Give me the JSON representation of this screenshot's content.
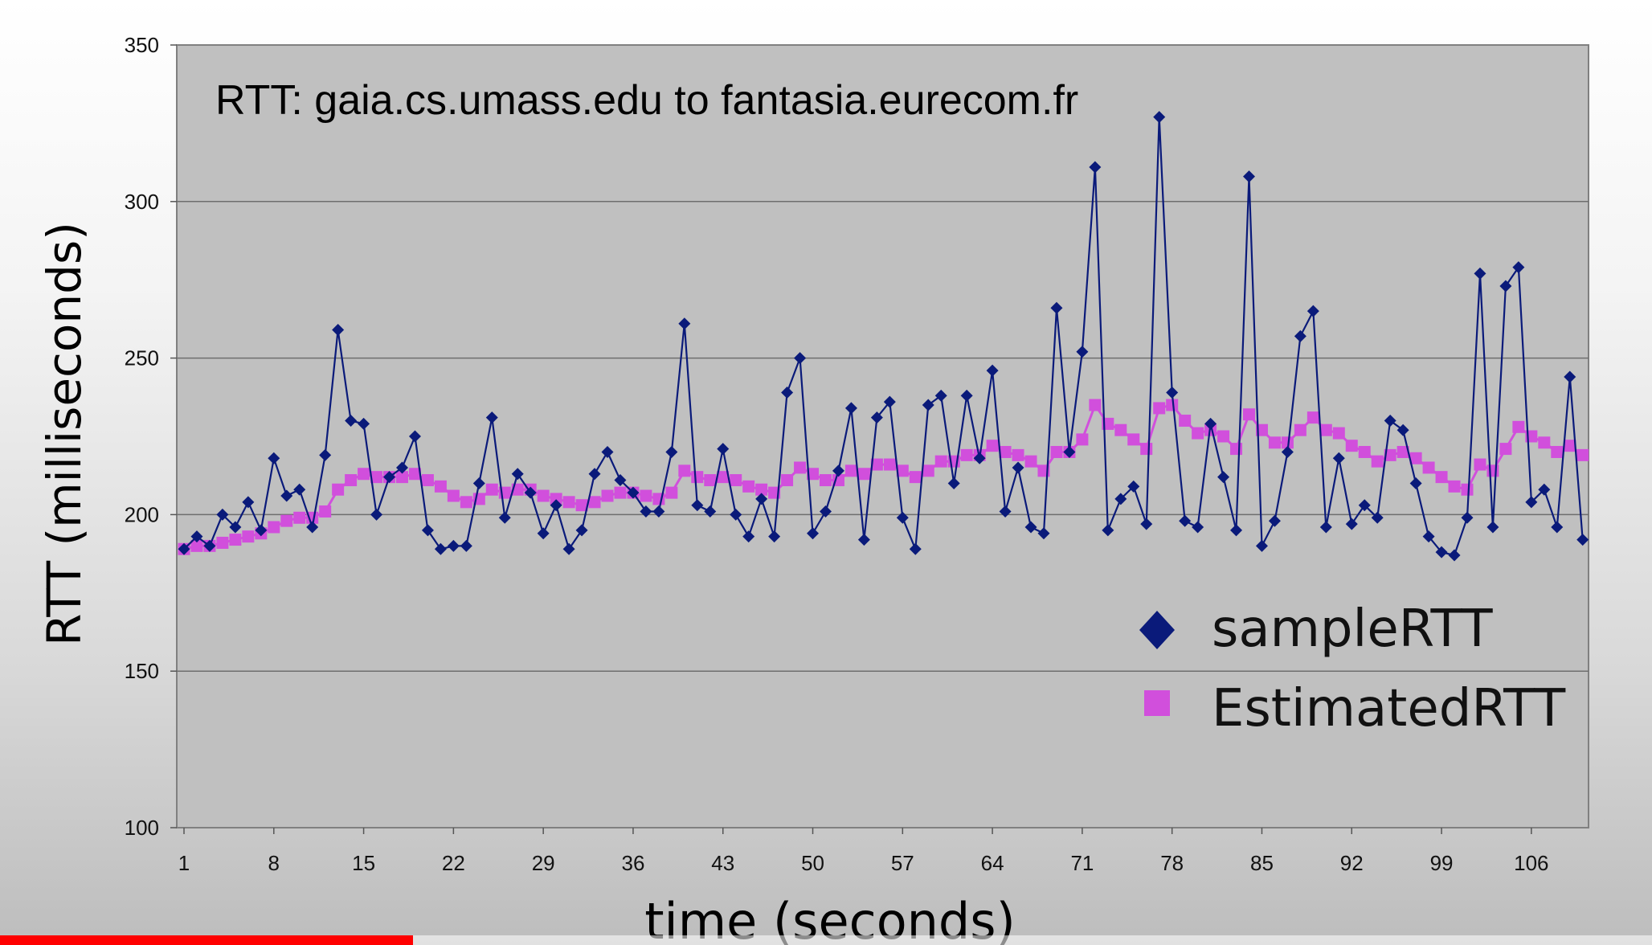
{
  "chart_data": {
    "type": "line",
    "title": "RTT: gaia.cs.umass.edu to fantasia.eurecom.fr",
    "xlabel": "time (seconds)",
    "ylabel": "RTT (milliseconds)",
    "xlim": [
      1,
      112
    ],
    "ylim": [
      100,
      350
    ],
    "x_ticks": [
      "1",
      "8",
      "15",
      "22",
      "29",
      "36",
      "43",
      "50",
      "57",
      "64",
      "71",
      "78",
      "85",
      "92",
      "99",
      "106"
    ],
    "y_ticks": [
      "100",
      "150",
      "200",
      "250",
      "300",
      "350"
    ],
    "grid": "horizontal",
    "legend_position": "bottom-right",
    "plot_background": "#c0c0c0",
    "series": [
      {
        "name": "sampleRTT",
        "color": "#0a1a7a",
        "marker": "diamond",
        "values": [
          189,
          193,
          190,
          200,
          196,
          204,
          195,
          218,
          206,
          208,
          196,
          219,
          259,
          230,
          229,
          200,
          212,
          215,
          225,
          195,
          189,
          190,
          190,
          210,
          231,
          199,
          213,
          207,
          194,
          203,
          189,
          195,
          213,
          220,
          211,
          207,
          201,
          201,
          220,
          261,
          203,
          201,
          221,
          200,
          193,
          205,
          193,
          239,
          250,
          194,
          201,
          214,
          234,
          192,
          231,
          236,
          199,
          189,
          235,
          238,
          210,
          238,
          218,
          246,
          201,
          215,
          196,
          194,
          266,
          220,
          252,
          311,
          195,
          205,
          209,
          197,
          327,
          239,
          198,
          196,
          229,
          212,
          195,
          308,
          190,
          198,
          220,
          257,
          265,
          196,
          218,
          197,
          203,
          199,
          230,
          227,
          210,
          193,
          188,
          187,
          199,
          277,
          196,
          273,
          279,
          204,
          208,
          196,
          244,
          192
        ]
      },
      {
        "name": "EstimatedRTT",
        "color": "#d14fdc",
        "marker": "square",
        "values": [
          189,
          190,
          190,
          191,
          192,
          193,
          194,
          196,
          198,
          199,
          199,
          201,
          208,
          211,
          213,
          212,
          212,
          212,
          213,
          211,
          209,
          206,
          204,
          205,
          208,
          207,
          208,
          208,
          206,
          205,
          204,
          203,
          204,
          206,
          207,
          207,
          206,
          205,
          207,
          214,
          212,
          211,
          212,
          211,
          209,
          208,
          207,
          211,
          215,
          213,
          211,
          211,
          214,
          213,
          216,
          216,
          214,
          212,
          214,
          217,
          217,
          219,
          219,
          222,
          220,
          219,
          217,
          214,
          220,
          220,
          224,
          235,
          229,
          227,
          224,
          221,
          234,
          235,
          230,
          226,
          227,
          225,
          221,
          232,
          227,
          223,
          223,
          227,
          231,
          227,
          226,
          222,
          220,
          217,
          219,
          220,
          218,
          215,
          212,
          209,
          208,
          216,
          214,
          221,
          228,
          225,
          223,
          220,
          222,
          219
        ]
      }
    ]
  },
  "progress": {
    "played_fraction": 0.25,
    "color": "#ff0000"
  }
}
